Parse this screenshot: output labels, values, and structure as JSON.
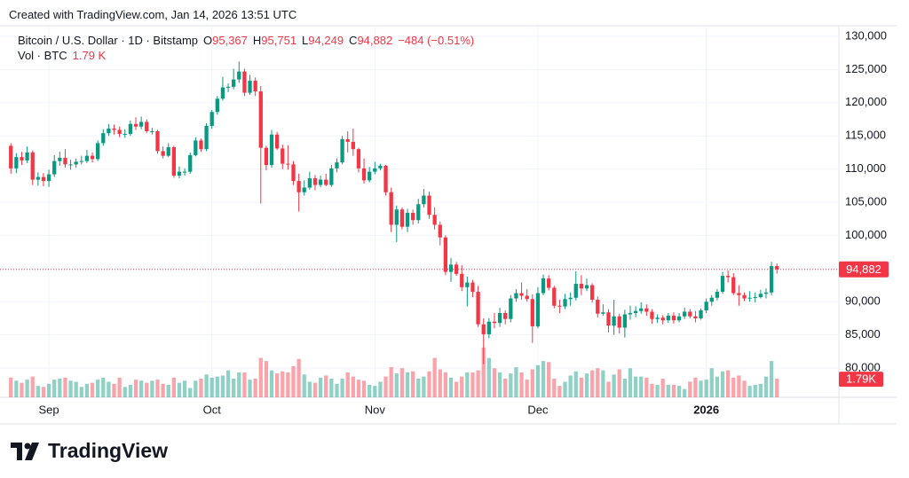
{
  "header": {
    "created": "Created with TradingView.com, Jan 14, 2026 13:51 UTC"
  },
  "chart_data": {
    "type": "candlestick",
    "title": "Bitcoin / U.S. Dollar · 1D · Bitstamp",
    "ohlc_legend": [
      {
        "key": "O",
        "value": "95,367"
      },
      {
        "key": "H",
        "value": "95,751"
      },
      {
        "key": "L",
        "value": "94,249"
      },
      {
        "key": "C",
        "value": "94,882"
      }
    ],
    "change_label": "−484 (−0.51%)",
    "volume_title": "Vol · BTC",
    "volume_legend_label": "1.79 K",
    "last_price_label": "94,882",
    "last_volume_label": "1.79K",
    "open": [
      113500,
      110100,
      111800,
      111300,
      112500,
      108400,
      108800,
      108200,
      109200,
      111200,
      111700,
      110700,
      110700,
      111100,
      111200,
      112000,
      111500,
      113900,
      115400,
      116100,
      115900,
      115300,
      115300,
      116800,
      116400,
      117100,
      115700,
      115700,
      112700,
      112000,
      113300,
      109000,
      109600,
      109600,
      112100,
      114300,
      113000,
      116500,
      118600,
      120600,
      122300,
      122400,
      123500,
      124700,
      121500,
      123300,
      121700,
      113200,
      110600,
      115200,
      113100,
      110800,
      110700,
      108200,
      106500,
      107200,
      108600,
      107600,
      108400,
      107600,
      110100,
      111000,
      114500,
      114100,
      113000,
      110100,
      108300,
      109600,
      110100,
      110500,
      106500,
      101600,
      103900,
      101300,
      103400,
      102300,
      104700,
      106000,
      103100,
      101600,
      99700,
      94500,
      95600,
      94200,
      92200,
      92900,
      91500,
      86600,
      85100,
      87000,
      86800,
      88300,
      87400,
      90500,
      91300,
      90900,
      90400,
      86300,
      91300,
      93500,
      92100,
      89400,
      89300,
      90400,
      90600,
      92700,
      92000,
      92500,
      90300,
      88200,
      88400,
      86400,
      87800,
      86100,
      88100,
      88300,
      88600,
      89000,
      88500,
      87400,
      87600,
      87200,
      87900,
      87200,
      87800,
      88500,
      87800,
      87500,
      88700,
      90000,
      90600,
      91500,
      93900,
      93700,
      91300,
      91000,
      90500,
      90600,
      90700,
      91200,
      91400,
      95367
    ],
    "high": [
      113900,
      112400,
      112600,
      113400,
      112800,
      109500,
      109400,
      109900,
      112100,
      112600,
      113000,
      111400,
      111600,
      112000,
      112900,
      112500,
      114300,
      116000,
      116800,
      116700,
      116400,
      116000,
      117300,
      117800,
      117900,
      117500,
      116200,
      115900,
      113400,
      113900,
      113500,
      110400,
      110100,
      112500,
      114800,
      114600,
      116900,
      118900,
      121000,
      123900,
      122900,
      125100,
      126200,
      125100,
      124200,
      123800,
      122500,
      113500,
      115900,
      115600,
      113700,
      113600,
      111200,
      109300,
      108300,
      109600,
      109100,
      109000,
      109300,
      110600,
      111600,
      115000,
      115700,
      116100,
      113200,
      111600,
      110300,
      111100,
      110800,
      110600,
      107200,
      104500,
      104200,
      104000,
      103900,
      105500,
      107000,
      106600,
      104200,
      102100,
      100000,
      96600,
      96000,
      95500,
      93800,
      93300,
      92400,
      87500,
      87500,
      88300,
      89100,
      88700,
      91000,
      91900,
      92900,
      91900,
      91100,
      92200,
      94100,
      94000,
      92400,
      90300,
      91200,
      91400,
      94600,
      94000,
      93500,
      92800,
      90800,
      89600,
      88900,
      90300,
      88200,
      88800,
      89400,
      89300,
      89900,
      89600,
      88900,
      88100,
      88000,
      88300,
      88400,
      88300,
      89100,
      88900,
      88600,
      89000,
      90500,
      91000,
      91900,
      94500,
      94700,
      94300,
      92500,
      91400,
      91600,
      91400,
      91800,
      92000,
      96000,
      95751
    ],
    "low": [
      109300,
      109400,
      110600,
      110900,
      107600,
      107500,
      107400,
      107300,
      108800,
      110500,
      110200,
      109900,
      110200,
      110700,
      110900,
      111000,
      111200,
      113500,
      115000,
      115200,
      114800,
      114700,
      115000,
      115900,
      116000,
      115400,
      115200,
      112300,
      111600,
      111800,
      108700,
      108600,
      109000,
      109300,
      111900,
      112600,
      112700,
      116100,
      118200,
      120300,
      121600,
      122000,
      123000,
      121000,
      121200,
      121000,
      104800,
      109800,
      110200,
      112900,
      110000,
      109900,
      107600,
      103600,
      106000,
      106900,
      106800,
      107300,
      107400,
      107300,
      109500,
      110700,
      112500,
      112000,
      109500,
      107800,
      108000,
      109200,
      109800,
      106000,
      100500,
      99000,
      100900,
      100500,
      101600,
      101800,
      104200,
      102500,
      100900,
      98500,
      94000,
      93000,
      93900,
      91600,
      89300,
      90700,
      86200,
      80600,
      84500,
      86000,
      86200,
      86600,
      86900,
      90000,
      90300,
      90000,
      83800,
      86000,
      91000,
      91700,
      89000,
      88300,
      88900,
      89400,
      90200,
      91000,
      91600,
      89900,
      87600,
      87900,
      85400,
      85000,
      85200,
      84600,
      87300,
      87700,
      88200,
      87900,
      86700,
      86800,
      86600,
      86800,
      86700,
      86900,
      87400,
      87500,
      86900,
      87300,
      88300,
      89400,
      90200,
      91200,
      92900,
      91000,
      89400,
      90100,
      90000,
      89900,
      90500,
      90500,
      91000,
      94249
    ],
    "close": [
      110100,
      111800,
      111300,
      112500,
      108400,
      108800,
      108200,
      109200,
      111200,
      111700,
      110700,
      110700,
      111100,
      111200,
      112000,
      111500,
      113900,
      115400,
      116100,
      115900,
      115300,
      115300,
      116800,
      116400,
      117100,
      115700,
      115700,
      112700,
      112000,
      113300,
      109000,
      109600,
      109600,
      112100,
      114300,
      113000,
      116500,
      118600,
      120600,
      122300,
      122400,
      123500,
      124700,
      121500,
      123300,
      121700,
      113200,
      110600,
      115200,
      113100,
      110800,
      110700,
      108200,
      106500,
      107200,
      108600,
      107600,
      108400,
      107600,
      110100,
      111000,
      114500,
      114100,
      113000,
      110100,
      108300,
      109600,
      110100,
      110500,
      106500,
      101600,
      103900,
      101300,
      103400,
      102300,
      104700,
      106000,
      103100,
      101600,
      99700,
      94500,
      95600,
      94200,
      92200,
      92900,
      91500,
      86600,
      85100,
      87000,
      86800,
      88300,
      87400,
      90500,
      91300,
      90900,
      90400,
      86300,
      91300,
      93500,
      92100,
      89400,
      89300,
      90400,
      90600,
      92700,
      92000,
      92500,
      90300,
      88200,
      88400,
      86400,
      87800,
      86100,
      88100,
      88300,
      88600,
      89000,
      88500,
      87400,
      87600,
      87200,
      87900,
      87200,
      87800,
      88500,
      87800,
      87500,
      88700,
      90000,
      90600,
      91500,
      93900,
      93700,
      91300,
      91000,
      90500,
      90600,
      90700,
      91200,
      91400,
      95367,
      94882
    ],
    "volume": [
      1900,
      1600,
      1400,
      1700,
      2000,
      1100,
      1000,
      1300,
      1700,
      1800,
      1900,
      1600,
      1500,
      1000,
      1300,
      1400,
      1700,
      1900,
      1500,
      1300,
      1900,
      1000,
      1200,
      1700,
      1600,
      1400,
      1600,
      1700,
      1300,
      1200,
      1900,
      1400,
      1600,
      900,
      1600,
      1800,
      2200,
      1900,
      2000,
      2100,
      2600,
      1800,
      2400,
      2400,
      1700,
      1800,
      3800,
      3500,
      2600,
      2300,
      2500,
      2400,
      3000,
      3700,
      2200,
      1500,
      1400,
      1900,
      2100,
      1800,
      1300,
      1800,
      2400,
      2000,
      1700,
      1600,
      1200,
      1100,
      1500,
      2000,
      2900,
      2300,
      2800,
      2400,
      2500,
      1800,
      2000,
      2500,
      3800,
      2700,
      2400,
      1900,
      1500,
      2000,
      2400,
      2400,
      2600,
      4800,
      3800,
      2800,
      2400,
      1800,
      2300,
      2900,
      2400,
      1700,
      2700,
      3100,
      3500,
      3400,
      1800,
      1100,
      1500,
      2100,
      2500,
      1900,
      2300,
      2600,
      2800,
      2600,
      1500,
      2200,
      2700,
      1800,
      2800,
      2000,
      2000,
      1900,
      1300,
      1200,
      1800,
      1200,
      1200,
      1100,
      800,
      1500,
      1900,
      1600,
      1700,
      2800,
      2000,
      2500,
      2600,
      1900,
      2100,
      1600,
      1100,
      1200,
      1300,
      2000,
      3500,
      1790
    ],
    "up_color": "#089981",
    "down_color": "#f23645",
    "ylim": [
      75600,
      131600
    ],
    "yticks": [
      {
        "value": 80000,
        "label": "80,000"
      },
      {
        "value": 85000,
        "label": "85,000"
      },
      {
        "value": 90000,
        "label": "90,000"
      },
      {
        "value": 95000,
        "label": "95,000"
      },
      {
        "value": 100000,
        "label": "100,000"
      },
      {
        "value": 105000,
        "label": "105,000"
      },
      {
        "value": 110000,
        "label": "110,000"
      },
      {
        "value": 115000,
        "label": "115,000"
      },
      {
        "value": 120000,
        "label": "120,000"
      },
      {
        "value": 125000,
        "label": "125,000"
      },
      {
        "value": 130000,
        "label": "130,000"
      }
    ],
    "xlim": [
      -2,
      152.4
    ],
    "xticks": [
      {
        "value": 7,
        "label": "Sep"
      },
      {
        "value": 37,
        "label": "Oct"
      },
      {
        "value": 67,
        "label": "Nov"
      },
      {
        "value": 97,
        "label": "Dec"
      },
      {
        "value": 128,
        "label": "2026"
      }
    ],
    "volume_ylim": [
      0,
      6500
    ],
    "grid": true
  },
  "footer": {
    "brand": "TradingView"
  }
}
